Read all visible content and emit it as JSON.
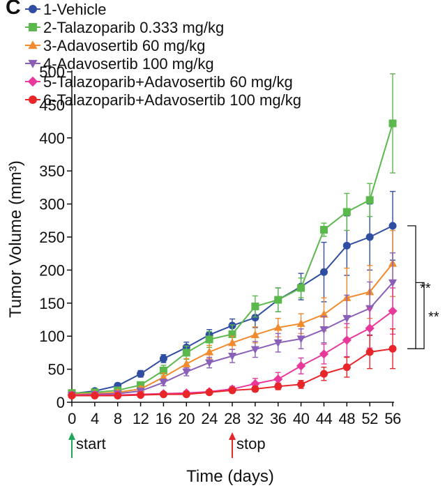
{
  "panel_label": "C",
  "chart_data": {
    "type": "line",
    "xlabel": "Time (days)",
    "ylabel": "Tumor Volume (mm³)",
    "xlim": [
      0,
      56
    ],
    "ylim": [
      0,
      500
    ],
    "x_ticks": [
      0,
      4,
      8,
      12,
      16,
      20,
      24,
      28,
      32,
      36,
      40,
      44,
      48,
      52,
      56
    ],
    "x_tick_labels": [
      "0",
      "4",
      "8",
      "12",
      "16",
      "20",
      "24",
      "28",
      "32",
      "36",
      "40",
      "44",
      "48",
      "52",
      "56"
    ],
    "y_ticks": [
      0,
      50,
      100,
      150,
      200,
      250,
      300,
      350,
      400,
      450,
      500
    ],
    "y_tick_labels": [
      "0",
      "50",
      "100",
      "150",
      "200",
      "250",
      "300",
      "350",
      "400",
      "450",
      "500"
    ],
    "legend_position": "top-left",
    "x": [
      0,
      4,
      8,
      12,
      16,
      20,
      24,
      28,
      32,
      36,
      40,
      44,
      48,
      52,
      56
    ],
    "series": [
      {
        "name": "1-Vehicle",
        "color": "#2f4ea3",
        "marker": "circle",
        "values": [
          13,
          17,
          25,
          43,
          66,
          83,
          102,
          116,
          128,
          155,
          175,
          197,
          237,
          250,
          267
        ],
        "errors": [
          3,
          3,
          4,
          5,
          6,
          8,
          8,
          10,
          15,
          18,
          20,
          45,
          45,
          50,
          52
        ]
      },
      {
        "name": "2-Talazoparib 0.333 mg/kg",
        "color": "#5bb84c",
        "marker": "square",
        "values": [
          14,
          15,
          18,
          26,
          48,
          75,
          95,
          103,
          145,
          155,
          173,
          261,
          288,
          306,
          422
        ],
        "errors": [
          3,
          3,
          4,
          5,
          8,
          10,
          12,
          14,
          16,
          18,
          15,
          10,
          28,
          25,
          75
        ]
      },
      {
        "name": "3-Adavosertib 60 mg/kg",
        "color": "#f28a2e",
        "marker": "triangle-up",
        "values": [
          12,
          13,
          15,
          20,
          38,
          58,
          76,
          90,
          102,
          113,
          119,
          133,
          158,
          167,
          210
        ],
        "errors": [
          3,
          3,
          3,
          4,
          6,
          8,
          10,
          10,
          12,
          14,
          15,
          25,
          45,
          40,
          50
        ]
      },
      {
        "name": "4-Adavosertib 100 mg/kg",
        "color": "#8a5fb8",
        "marker": "triangle-down",
        "values": [
          11,
          12,
          13,
          17,
          30,
          46,
          60,
          70,
          80,
          90,
          96,
          110,
          127,
          142,
          181
        ],
        "errors": [
          3,
          3,
          3,
          4,
          5,
          6,
          8,
          10,
          12,
          14,
          15,
          20,
          35,
          40,
          45
        ]
      },
      {
        "name": "5-Talazoparib+Adavosertib 60 mg/kg",
        "color": "#e8389a",
        "marker": "diamond",
        "values": [
          11,
          11,
          11,
          12,
          13,
          14,
          16,
          20,
          28,
          35,
          55,
          73,
          94,
          112,
          138
        ],
        "errors": [
          2,
          2,
          2,
          2,
          2,
          3,
          3,
          4,
          8,
          10,
          12,
          15,
          25,
          30,
          35
        ]
      },
      {
        "name": "6-Talazoparib+Adavosertib 100 mg/kg",
        "color": "#e8262a",
        "marker": "circle",
        "values": [
          10,
          10,
          10,
          11,
          12,
          12,
          15,
          18,
          20,
          24,
          27,
          43,
          53,
          76,
          81
        ],
        "errors": [
          2,
          2,
          2,
          2,
          2,
          2,
          3,
          3,
          4,
          5,
          6,
          10,
          15,
          25,
          30
        ]
      }
    ],
    "annotations": {
      "start": {
        "label": "start",
        "x": 0,
        "color": "#21a55a"
      },
      "stop": {
        "label": "stop",
        "x": 28,
        "color": "#e8262a"
      },
      "significance": [
        {
          "label": "**",
          "from_value": 267,
          "to_value": 81
        },
        {
          "label": "**",
          "from_value": 181,
          "to_value": 81
        }
      ]
    }
  }
}
